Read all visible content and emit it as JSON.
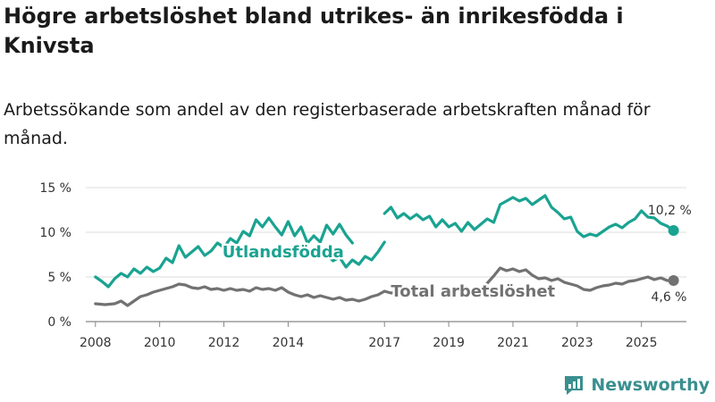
{
  "title": "Högre arbetslöshet bland utrikes- än inrikesfödda i Knivsta",
  "subtitle": "Arbetssökande som andel av den registerbaserade arbetskraften månad för månad.",
  "brand": {
    "name": "Newsworthy",
    "icon": "newsworthy-logo-icon"
  },
  "colors": {
    "foreign": "#1aa391",
    "total": "#727272",
    "grid": "#dddddd",
    "axis": "#888888"
  },
  "chart_data": {
    "type": "line",
    "title": "Högre arbetslöshet bland utrikes- än inrikesfödda i Knivsta",
    "xlabel": "",
    "ylabel": "",
    "ylim": [
      0,
      15
    ],
    "xlim": [
      2007.7,
      2026.4
    ],
    "y_ticks": [
      0,
      5,
      10,
      15
    ],
    "y_tick_labels": [
      "0 %",
      "5 %",
      "10 %",
      "15 %"
    ],
    "x_ticks": [
      2008,
      2010,
      2012,
      2014,
      2017,
      2019,
      2021,
      2023,
      2025
    ],
    "x_tick_labels": [
      "2008",
      "2010",
      "2012",
      "2014",
      "2017",
      "2019",
      "2021",
      "2023",
      "2025"
    ],
    "grid": true,
    "series": [
      {
        "name": "Utlandsfödda",
        "label": "Utlandsfödda",
        "end_value_label": "10,2 %",
        "segments": [
          [
            [
              2008.0,
              5.0
            ],
            [
              2008.2,
              4.5
            ],
            [
              2008.4,
              3.9
            ],
            [
              2008.6,
              4.8
            ],
            [
              2008.8,
              5.4
            ],
            [
              2009.0,
              5.0
            ],
            [
              2009.2,
              5.9
            ],
            [
              2009.4,
              5.4
            ],
            [
              2009.6,
              6.1
            ],
            [
              2009.8,
              5.6
            ],
            [
              2010.0,
              6.0
            ],
            [
              2010.2,
              7.1
            ],
            [
              2010.4,
              6.6
            ],
            [
              2010.6,
              8.5
            ],
            [
              2010.8,
              7.2
            ],
            [
              2011.0,
              7.8
            ],
            [
              2011.2,
              8.4
            ],
            [
              2011.4,
              7.4
            ],
            [
              2011.6,
              7.9
            ],
            [
              2011.8,
              8.8
            ],
            [
              2012.0,
              8.3
            ],
            [
              2012.2,
              9.3
            ],
            [
              2012.4,
              8.8
            ],
            [
              2012.6,
              10.1
            ],
            [
              2012.8,
              9.6
            ],
            [
              2013.0,
              11.4
            ],
            [
              2013.2,
              10.6
            ],
            [
              2013.4,
              11.6
            ],
            [
              2013.6,
              10.6
            ],
            [
              2013.8,
              9.7
            ],
            [
              2014.0,
              11.2
            ],
            [
              2014.2,
              9.6
            ],
            [
              2014.4,
              10.6
            ],
            [
              2014.6,
              8.8
            ],
            [
              2014.8,
              9.6
            ],
            [
              2015.0,
              8.9
            ],
            [
              2015.2,
              10.8
            ],
            [
              2015.4,
              9.8
            ],
            [
              2015.6,
              10.9
            ],
            [
              2015.8,
              9.7
            ],
            [
              2016.0,
              8.8
            ]
          ],
          [
            [
              2015.2,
              7.5
            ],
            [
              2015.4,
              6.8
            ],
            [
              2015.6,
              7.2
            ],
            [
              2015.8,
              6.1
            ],
            [
              2016.0,
              6.9
            ],
            [
              2016.2,
              6.4
            ],
            [
              2016.4,
              7.3
            ],
            [
              2016.6,
              6.9
            ],
            [
              2016.8,
              7.8
            ],
            [
              2017.0,
              8.9
            ]
          ],
          [
            [
              2017.0,
              12.1
            ],
            [
              2017.2,
              12.8
            ],
            [
              2017.4,
              11.6
            ],
            [
              2017.6,
              12.1
            ],
            [
              2017.8,
              11.5
            ],
            [
              2018.0,
              12.0
            ],
            [
              2018.2,
              11.4
            ],
            [
              2018.4,
              11.8
            ],
            [
              2018.6,
              10.6
            ],
            [
              2018.8,
              11.4
            ],
            [
              2019.0,
              10.6
            ],
            [
              2019.2,
              11.0
            ],
            [
              2019.4,
              10.1
            ],
            [
              2019.6,
              11.1
            ],
            [
              2019.8,
              10.3
            ],
            [
              2020.0,
              10.9
            ],
            [
              2020.2,
              11.5
            ],
            [
              2020.4,
              11.1
            ],
            [
              2020.6,
              13.1
            ],
            [
              2020.8,
              13.5
            ],
            [
              2021.0,
              13.9
            ],
            [
              2021.2,
              13.5
            ],
            [
              2021.4,
              13.8
            ],
            [
              2021.6,
              13.1
            ],
            [
              2021.8,
              13.6
            ],
            [
              2022.0,
              14.1
            ],
            [
              2022.2,
              12.8
            ],
            [
              2022.4,
              12.2
            ],
            [
              2022.6,
              11.5
            ],
            [
              2022.8,
              11.7
            ],
            [
              2023.0,
              10.1
            ],
            [
              2023.2,
              9.5
            ],
            [
              2023.4,
              9.8
            ],
            [
              2023.6,
              9.6
            ],
            [
              2023.8,
              10.1
            ],
            [
              2024.0,
              10.6
            ],
            [
              2024.2,
              10.9
            ],
            [
              2024.4,
              10.5
            ],
            [
              2024.6,
              11.1
            ],
            [
              2024.8,
              11.5
            ],
            [
              2025.0,
              12.4
            ],
            [
              2025.2,
              11.7
            ],
            [
              2025.4,
              11.6
            ],
            [
              2025.6,
              11.0
            ],
            [
              2025.8,
              10.7
            ],
            [
              2026.0,
              10.2
            ]
          ]
        ]
      },
      {
        "name": "Total arbetslöshet",
        "label": "Total arbetslöshet",
        "end_value_label": "4,6 %",
        "segments": [
          [
            [
              2008.0,
              2.0
            ],
            [
              2008.3,
              1.9
            ],
            [
              2008.6,
              2.0
            ],
            [
              2008.8,
              2.3
            ],
            [
              2009.0,
              1.8
            ],
            [
              2009.2,
              2.3
            ],
            [
              2009.4,
              2.8
            ],
            [
              2009.6,
              3.0
            ],
            [
              2009.8,
              3.3
            ],
            [
              2010.0,
              3.5
            ],
            [
              2010.2,
              3.7
            ],
            [
              2010.4,
              3.9
            ],
            [
              2010.6,
              4.2
            ],
            [
              2010.8,
              4.1
            ],
            [
              2011.0,
              3.8
            ],
            [
              2011.2,
              3.7
            ],
            [
              2011.4,
              3.9
            ],
            [
              2011.6,
              3.6
            ],
            [
              2011.8,
              3.7
            ],
            [
              2012.0,
              3.5
            ],
            [
              2012.2,
              3.7
            ],
            [
              2012.4,
              3.5
            ],
            [
              2012.6,
              3.6
            ],
            [
              2012.8,
              3.4
            ],
            [
              2013.0,
              3.8
            ],
            [
              2013.2,
              3.6
            ],
            [
              2013.4,
              3.7
            ],
            [
              2013.6,
              3.5
            ],
            [
              2013.8,
              3.8
            ],
            [
              2014.0,
              3.3
            ],
            [
              2014.2,
              3.0
            ],
            [
              2014.4,
              2.8
            ],
            [
              2014.6,
              3.0
            ],
            [
              2014.8,
              2.7
            ],
            [
              2015.0,
              2.9
            ],
            [
              2015.2,
              2.7
            ],
            [
              2015.4,
              2.5
            ],
            [
              2015.6,
              2.7
            ],
            [
              2015.8,
              2.4
            ],
            [
              2016.0,
              2.5
            ],
            [
              2016.2,
              2.3
            ],
            [
              2016.4,
              2.5
            ],
            [
              2016.6,
              2.8
            ],
            [
              2016.8,
              3.0
            ],
            [
              2017.0,
              3.4
            ],
            [
              2017.2,
              3.2
            ],
            [
              2017.4,
              3.3
            ]
          ],
          [
            [
              2020.2,
              4.3
            ],
            [
              2020.4,
              5.1
            ],
            [
              2020.6,
              6.0
            ],
            [
              2020.8,
              5.7
            ],
            [
              2021.0,
              5.9
            ],
            [
              2021.2,
              5.6
            ],
            [
              2021.4,
              5.8
            ],
            [
              2021.6,
              5.2
            ],
            [
              2021.8,
              4.8
            ],
            [
              2022.0,
              4.9
            ],
            [
              2022.2,
              4.6
            ],
            [
              2022.4,
              4.8
            ],
            [
              2022.6,
              4.4
            ],
            [
              2022.8,
              4.2
            ],
            [
              2023.0,
              4.0
            ],
            [
              2023.2,
              3.6
            ],
            [
              2023.4,
              3.5
            ],
            [
              2023.6,
              3.8
            ],
            [
              2023.8,
              4.0
            ],
            [
              2024.0,
              4.1
            ],
            [
              2024.2,
              4.3
            ],
            [
              2024.4,
              4.2
            ],
            [
              2024.6,
              4.5
            ],
            [
              2024.8,
              4.6
            ],
            [
              2025.0,
              4.8
            ],
            [
              2025.2,
              5.0
            ],
            [
              2025.4,
              4.7
            ],
            [
              2025.6,
              4.9
            ],
            [
              2025.8,
              4.6
            ],
            [
              2026.0,
              4.6
            ]
          ]
        ]
      }
    ]
  }
}
